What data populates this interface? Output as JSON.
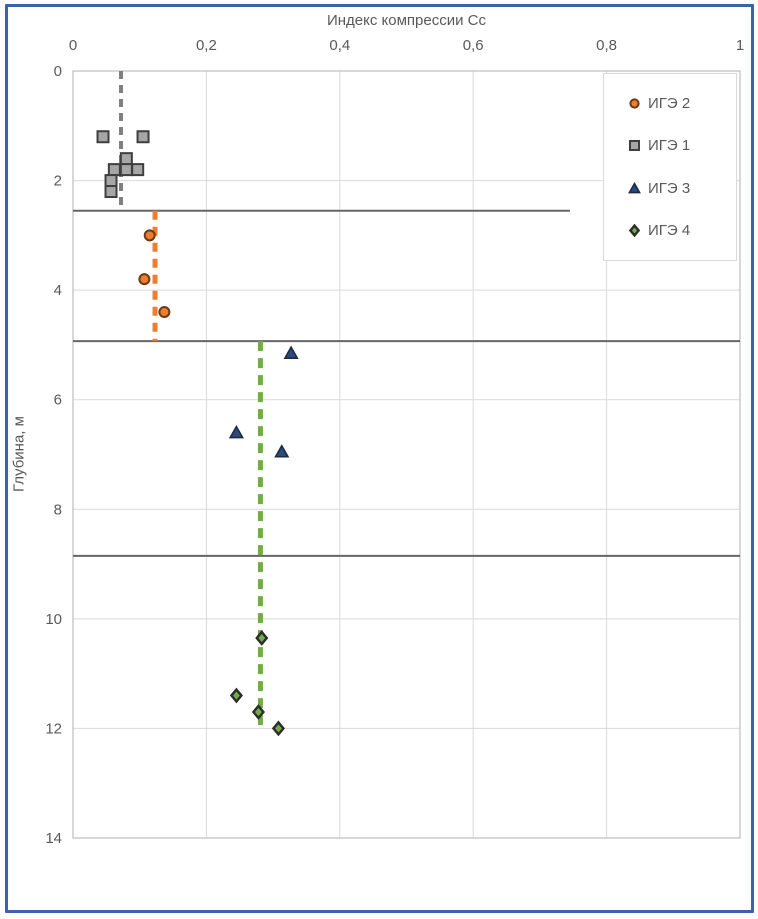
{
  "chart_data": {
    "type": "scatter",
    "title": "Индекс компрессии Сс",
    "xlabel": "Индекс компрессии Сс",
    "ylabel": "Глубина, м",
    "xlim": [
      0,
      1
    ],
    "ylim": [
      0,
      14
    ],
    "x_tick_labels": [
      "0",
      "0,2",
      "0,4",
      "0,6",
      "0,8",
      "1"
    ],
    "x_tick_values": [
      0,
      0.2,
      0.4,
      0.6,
      0.8,
      1
    ],
    "y_tick_labels": [
      "0",
      "2",
      "4",
      "6",
      "8",
      "10",
      "12",
      "14"
    ],
    "y_tick_values": [
      0,
      2,
      4,
      6,
      8,
      10,
      12,
      14
    ],
    "grid": true,
    "legend_position": "top-right",
    "axis_note": "x axis on top = compression index Cc, y axis = depth in m (increasing downward)",
    "series": [
      {
        "name": "ИГЭ 2",
        "marker": "circle",
        "fill": "#ED7D31",
        "outline": "#6b3a12",
        "points": [
          [
            0.115,
            3.0
          ],
          [
            0.107,
            3.8
          ],
          [
            0.137,
            4.4
          ]
        ]
      },
      {
        "name": "ИГЭ 1",
        "marker": "square",
        "fill": "#A6A6A6",
        "outline": "#3f3f3f",
        "points": [
          [
            0.045,
            1.2
          ],
          [
            0.105,
            1.2
          ],
          [
            0.08,
            1.6
          ],
          [
            0.062,
            1.8
          ],
          [
            0.08,
            1.8
          ],
          [
            0.097,
            1.8
          ],
          [
            0.057,
            2.0
          ],
          [
            0.057,
            2.2
          ]
        ]
      },
      {
        "name": "ИГЭ 3",
        "marker": "triangle",
        "fill": "#2e4878",
        "outline": "#1c2b49",
        "points": [
          [
            0.327,
            5.15
          ],
          [
            0.245,
            6.6
          ],
          [
            0.313,
            6.95
          ]
        ]
      },
      {
        "name": "ИГЭ 4",
        "marker": "diamond",
        "fill": "#70AD47",
        "outline": "#2b2b2b",
        "points": [
          [
            0.283,
            10.35
          ],
          [
            0.245,
            11.4
          ],
          [
            0.278,
            11.7
          ],
          [
            0.308,
            12.0
          ]
        ]
      }
    ],
    "trend_lines": [
      {
        "for_series": "ИГЭ 1",
        "color": "#7f7f7f",
        "cc": 0.072,
        "depth_from": 0,
        "depth_to": 2.55,
        "width": 4,
        "dash": "8 6"
      },
      {
        "for_series": "ИГЭ 2",
        "color": "#ED7D31",
        "cc": 0.123,
        "depth_from": 2.55,
        "depth_to": 4.93,
        "width": 5,
        "dash": "9 7"
      },
      {
        "for_series": "ИГЭ 4",
        "color": "#70AD47",
        "cc": 0.281,
        "depth_from": 4.93,
        "depth_to": 11.97,
        "width": 5,
        "dash": "10 7"
      }
    ],
    "layer_boundary_lines": [
      {
        "depth": 2.55,
        "cc_from": 0,
        "cc_to": 0.745
      },
      {
        "depth": 4.93,
        "cc_from": 0,
        "cc_to": 1
      },
      {
        "depth": 8.85,
        "cc_from": 0,
        "cc_to": 1
      }
    ]
  },
  "colors": {
    "outer_border": "#3e61ac",
    "gridline": "#d9d9d9",
    "plot_border": "#bfbfbf",
    "boundary_line": "#666666",
    "label_text": "#595959",
    "background": "#ffffff"
  },
  "legend": {
    "items": [
      "ИГЭ 2",
      "ИГЭ 1",
      "ИГЭ 3",
      "ИГЭ 4"
    ]
  }
}
